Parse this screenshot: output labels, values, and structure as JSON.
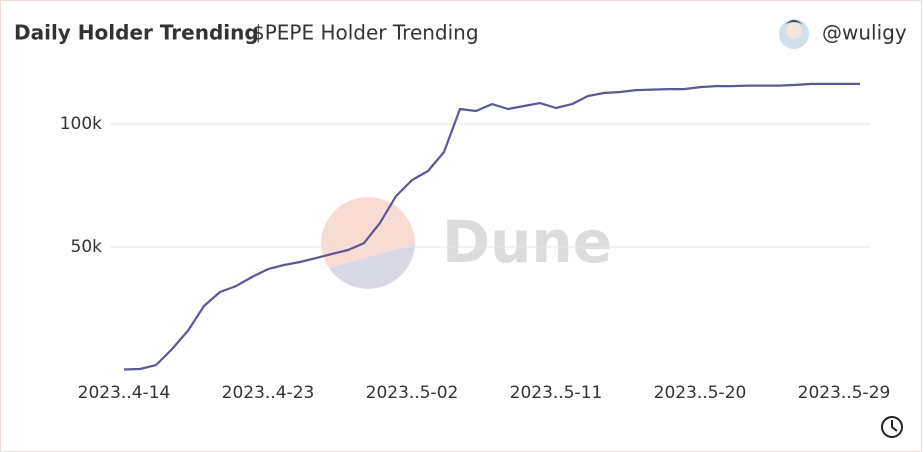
{
  "header": {
    "title": "Daily Holder Trending",
    "subtitle": "$PEPE Holder Trending",
    "user": "@wuligy"
  },
  "chart_data": {
    "type": "line",
    "watermark": "Dune",
    "categories": [
      "2023..4-14",
      null,
      null,
      null,
      null,
      null,
      null,
      null,
      null,
      "2023..4-23",
      null,
      null,
      null,
      null,
      null,
      null,
      null,
      null,
      "2023..5-02",
      null,
      null,
      null,
      null,
      null,
      null,
      null,
      null,
      "2023..5-11",
      null,
      null,
      null,
      null,
      null,
      null,
      null,
      null,
      "2023..5-20",
      null,
      null,
      null,
      null,
      null,
      null,
      null,
      null,
      "2023..5-29",
      null
    ],
    "series": [
      {
        "color": "#5b5896",
        "values": [
          200,
          400,
          2000,
          8500,
          16000,
          26000,
          31700,
          34100,
          37800,
          41000,
          42700,
          43900,
          45500,
          47200,
          48800,
          51600,
          59800,
          70700,
          77200,
          80900,
          88600,
          106100,
          105300,
          108100,
          106100,
          107300,
          108500,
          106500,
          108100,
          111400,
          112600,
          113000,
          113800,
          114000,
          114200,
          114200,
          115000,
          115400,
          115400,
          115600,
          115600,
          115600,
          115900,
          116300,
          116300,
          116300,
          116300
        ]
      }
    ],
    "ylim": [
      0,
      125000
    ],
    "yticks": [
      {
        "value": 50000,
        "label": "50k"
      },
      {
        "value": 100000,
        "label": "100k"
      }
    ],
    "grid": true
  }
}
